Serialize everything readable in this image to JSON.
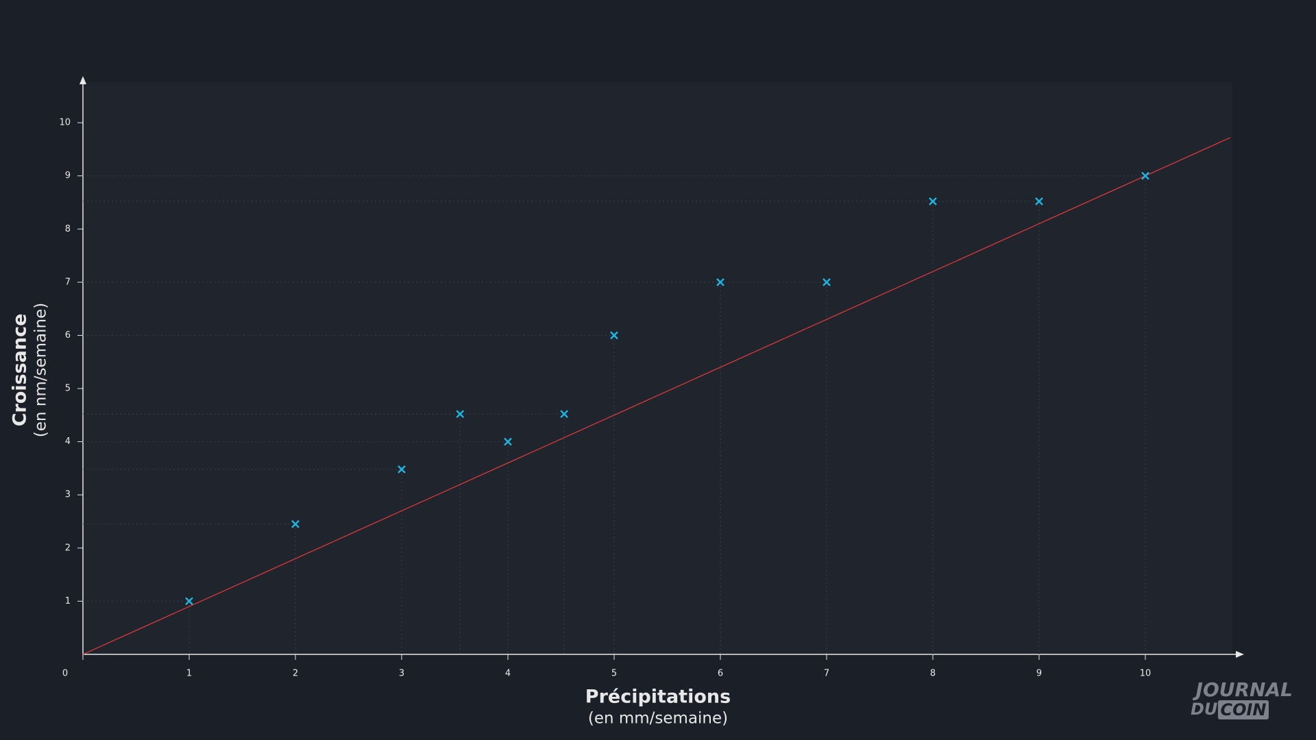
{
  "chart_data": {
    "type": "scatter",
    "x_title": "Précipitations",
    "x_subtitle": "(en mm/semaine)",
    "y_title": "Croissance",
    "y_subtitle": "(en nm/semaine)",
    "x": [
      1,
      2,
      3,
      3.55,
      4,
      4.53,
      5,
      6,
      7,
      8,
      9,
      10
    ],
    "values": [
      1,
      2.45,
      3.48,
      4.52,
      4,
      4.52,
      6,
      7,
      7,
      8.52,
      8.52,
      9
    ],
    "color": "#1fb4e0",
    "fit_line": {
      "x": [
        0,
        10.8
      ],
      "y": [
        0,
        9.72
      ],
      "color": "#d9393a"
    },
    "xlim": [
      0,
      10.8
    ],
    "ylim": [
      0,
      10.8
    ],
    "xticks": [
      0,
      1,
      2,
      3,
      4,
      5,
      6,
      7,
      8,
      9,
      10
    ],
    "yticks": [
      1,
      2,
      3,
      4,
      5,
      6,
      7,
      8,
      9,
      10
    ],
    "guides": true
  },
  "logo": {
    "line1": "JOURNAL",
    "line2a": "DU",
    "line2b": "COIN"
  }
}
